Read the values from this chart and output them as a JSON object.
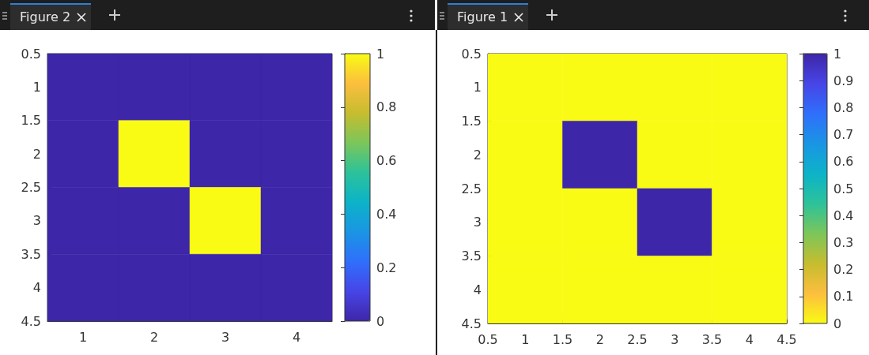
{
  "chart_data": [
    {
      "type": "heatmap",
      "title": "Figure 2",
      "cells": [
        [
          0,
          0,
          0,
          0
        ],
        [
          0,
          1,
          0,
          0
        ],
        [
          0,
          0,
          1,
          0
        ],
        [
          0,
          0,
          0,
          0
        ]
      ],
      "xlim": [
        0.5,
        4.5
      ],
      "xticks": [
        1,
        2,
        3,
        4
      ],
      "ylim": [
        4.5,
        0.5
      ],
      "yticks": [
        0.5,
        1,
        1.5,
        2,
        2.5,
        3,
        3.5,
        4,
        4.5
      ],
      "clim": [
        0,
        1
      ],
      "cticks": [
        0,
        0.2,
        0.4,
        0.6,
        0.8,
        1
      ],
      "colors": [
        "#3e26a8",
        "#4745e6",
        "#2f6ffb",
        "#1a95e4",
        "#0cb3c8",
        "#2cc29a",
        "#7cc65a",
        "#c6bd2e",
        "#fcbe3e",
        "#f9fb15"
      ]
    },
    {
      "type": "heatmap",
      "title": "Figure 1",
      "cells": [
        [
          0,
          0,
          0,
          0
        ],
        [
          0,
          1,
          0,
          0
        ],
        [
          0,
          0,
          1,
          0
        ],
        [
          0,
          0,
          0,
          0
        ]
      ],
      "xlim": [
        0.5,
        4.5
      ],
      "xticks": [
        0.5,
        1,
        1.5,
        2,
        2.5,
        3,
        3.5,
        4,
        4.5
      ],
      "ylim": [
        4.5,
        0.5
      ],
      "yticks": [
        0.5,
        1,
        1.5,
        2,
        2.5,
        3,
        3.5,
        4,
        4.5
      ],
      "clim": [
        0,
        1
      ],
      "cticks": [
        0,
        0.1,
        0.2,
        0.3,
        0.4,
        0.5,
        0.6,
        0.7,
        0.8,
        0.9,
        1
      ],
      "colors": [
        "#f9fb15",
        "#fcbe3e",
        "#c6bd2e",
        "#7cc65a",
        "#2cc29a",
        "#0cb3c8",
        "#1a95e4",
        "#2f6ffb",
        "#4745e6",
        "#3e26a8"
      ]
    }
  ]
}
